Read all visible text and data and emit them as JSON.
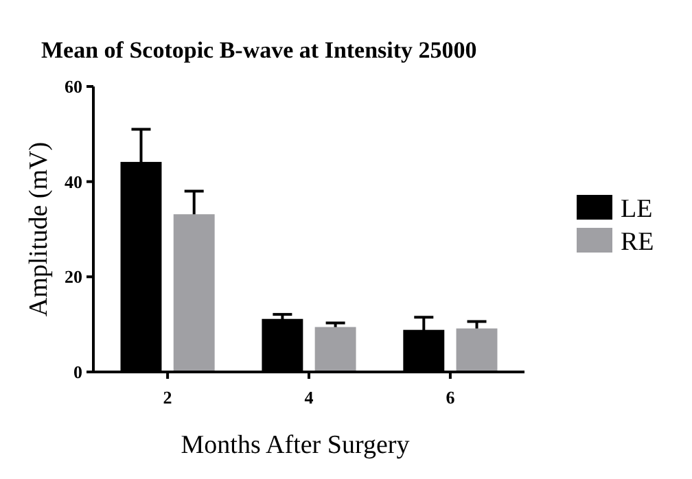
{
  "chart_data": {
    "type": "bar",
    "title": "Mean of Scotopic B-wave at Intensity 25000",
    "xlabel": "Months After Surgery",
    "ylabel": "Amplitude (mV)",
    "categories": [
      "2",
      "4",
      "6"
    ],
    "series": [
      {
        "name": "LE",
        "color": "#000000",
        "values": [
          44,
          11,
          8.7
        ],
        "errors": [
          7,
          1.1,
          2.8
        ]
      },
      {
        "name": "RE",
        "color": "#a0a0a4",
        "values": [
          33,
          9.3,
          9
        ],
        "errors": [
          5,
          1,
          1.6
        ]
      }
    ],
    "ylim": [
      0,
      60
    ],
    "yticks": [
      0,
      20,
      40,
      60
    ],
    "legend": "right",
    "grid": false
  }
}
